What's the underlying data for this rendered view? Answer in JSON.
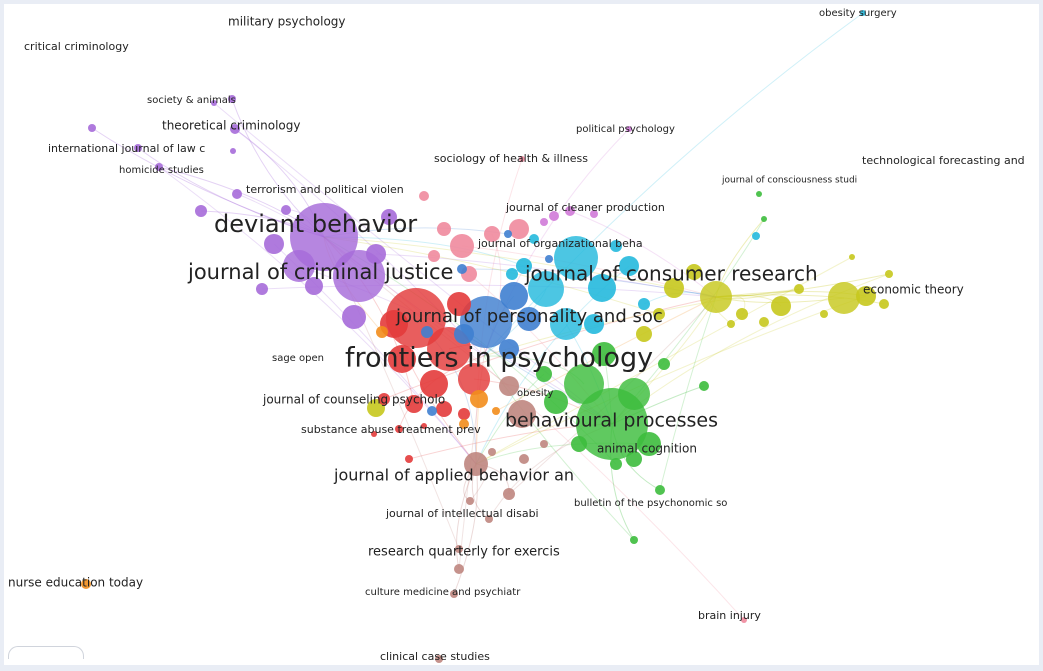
{
  "labels": {
    "military": "military psychology",
    "critical_crim": "critical criminology",
    "obesity_surgery": "obesity surgery",
    "society_animals": "society & animals",
    "theoretical_crim": "theoretical criminology",
    "political_psych": "political psychology",
    "intl_journal_law": "international journal of law c",
    "sociology_health": "sociology of health & illness",
    "tech_forecasting": "technological forecasting and",
    "homicide": "homicide studies",
    "consciousness": "journal of consciousness studi",
    "terrorism": "terrorism and political violen",
    "cleaner_production": "journal of cleaner production",
    "deviant_behavior": "deviant behavior",
    "organizational_beha": "journal of organizational beha",
    "criminal_justice": "journal of criminal justice",
    "consumer_research": "journal of consumer research",
    "economic_theory": "economic theory",
    "personality_soc": "journal of personality and soc",
    "sage_open": "sage open",
    "frontiers": "frontiers in psychology",
    "obesity": "obesity",
    "counseling": "journal of counseling psycholo",
    "behavioural_processes": "behavioural processes",
    "substance_abuse": "substance abuse treatment prev",
    "animal_cognition": "animal cognition",
    "applied_behavior": "journal of applied behavior an",
    "psychonomic": "bulletin of the psychonomic so",
    "intellectual_disab": "journal of intellectual disabi",
    "research_quarterly": "research quarterly for exercis",
    "nurse_education": "nurse education today",
    "culture_medicine": "culture medicine and psychiatr",
    "brain_injury": "brain injury",
    "clinical_case": "clinical case studies"
  },
  "clusters": {
    "purple": "#a66bd9",
    "red": "#e33b3b",
    "blue": "#3f7fd0",
    "cyan": "#25b9dd",
    "yellow": "#c7c81d",
    "green": "#3dbd3d",
    "brown": "#bf8680",
    "pink": "#f08a9d",
    "orange": "#f28d1c",
    "magenta": "#d07ad8"
  }
}
